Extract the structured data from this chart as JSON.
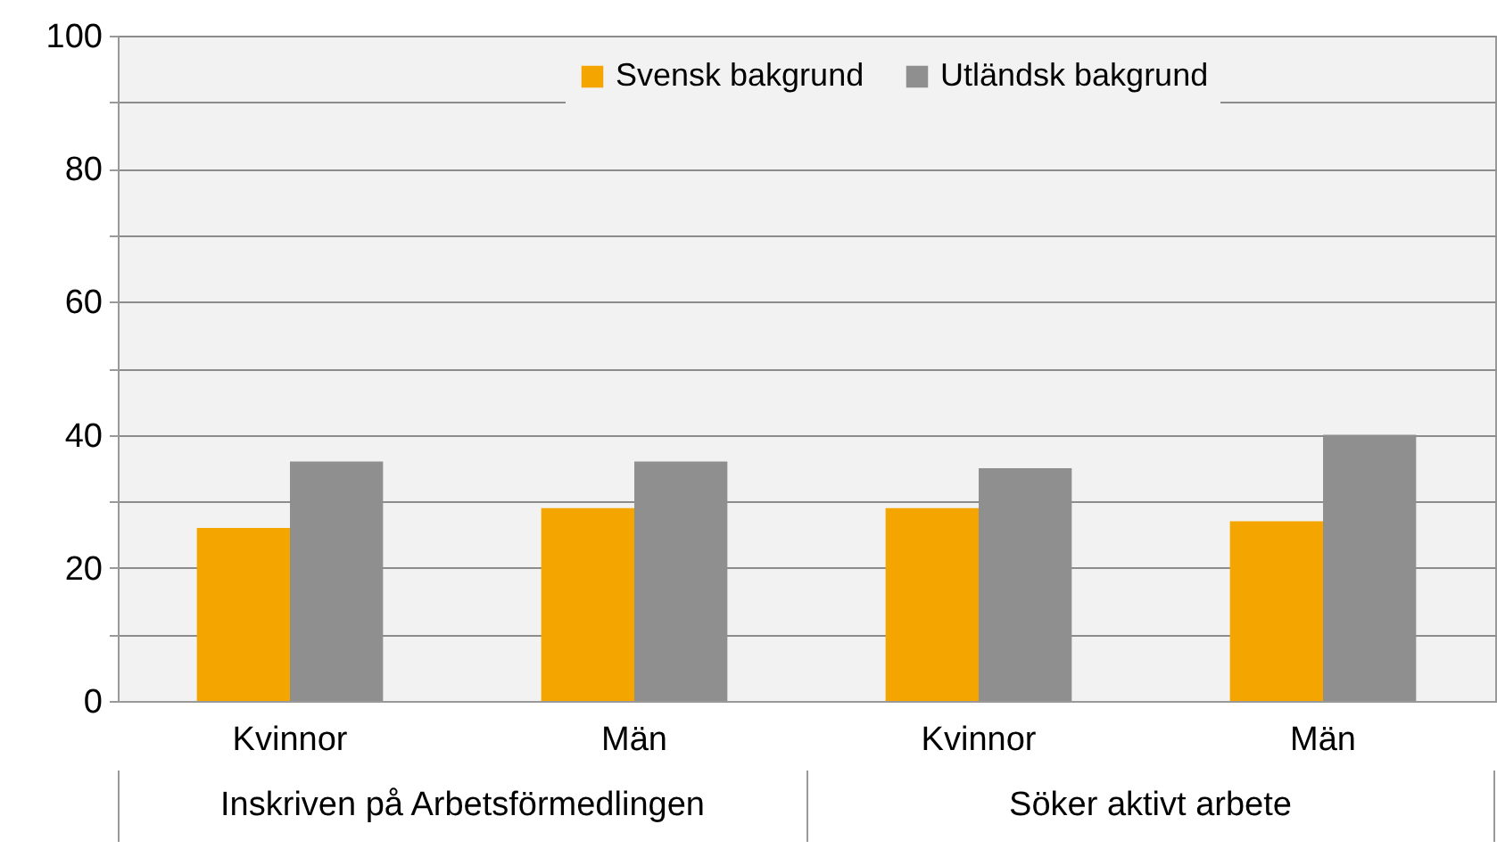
{
  "chart_data": {
    "type": "bar",
    "categories": [
      "Kvinnor",
      "Män",
      "Kvinnor",
      "Män"
    ],
    "series": [
      {
        "name": "Svensk bakgrund",
        "color": "#f5a500",
        "values": [
          26,
          29,
          29,
          27
        ]
      },
      {
        "name": "Utländsk bakgrund",
        "color": "#8f8f8f",
        "values": [
          36,
          36,
          35,
          40
        ]
      }
    ],
    "ylim": [
      0,
      100
    ],
    "yticks": [
      0,
      {
        "value": 10,
        "label": null
      },
      20,
      {
        "value": 30,
        "label": null
      },
      40,
      {
        "value": 50,
        "label": null
      },
      60,
      {
        "value": 70,
        "label": null
      },
      80,
      {
        "value": 90,
        "label": null
      },
      100
    ],
    "grid": true,
    "legend": "top",
    "annotations": [
      "Inskriven på Arbetsförmedlingen",
      "Söker aktivt arbete"
    ]
  }
}
